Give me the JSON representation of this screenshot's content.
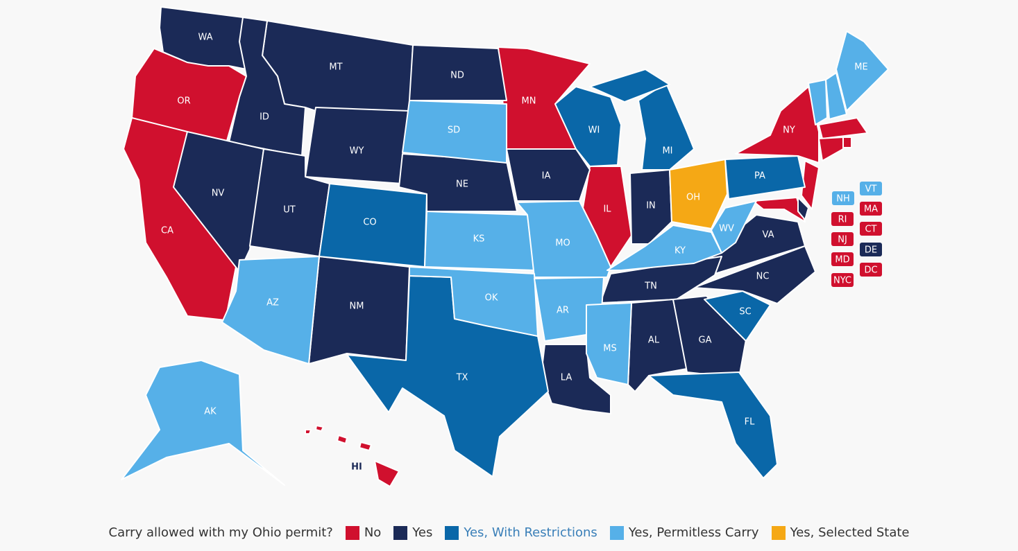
{
  "legend": {
    "title": "Carry allowed with my Ohio permit?",
    "items": [
      {
        "label": "No",
        "color": "#d0102e",
        "states": [
          "OR",
          "CA",
          "MN",
          "IL",
          "NY",
          "HI",
          "MA",
          "RI",
          "CT",
          "NJ",
          "MD",
          "DC",
          "NYC"
        ]
      },
      {
        "label": "Yes",
        "color": "#1b2a57",
        "states": [
          "WA",
          "MT",
          "ID",
          "NV",
          "UT",
          "WY",
          "ND",
          "NE",
          "IA",
          "NM",
          "IN",
          "VA",
          "NC",
          "TN",
          "AL",
          "GA",
          "LA",
          "DE"
        ]
      },
      {
        "label": "Yes, With Restrictions",
        "color": "#0a67a8",
        "states": [
          "CO",
          "WI",
          "MI",
          "PA",
          "TX",
          "SC",
          "FL"
        ]
      },
      {
        "label": "Yes, Permitless Carry",
        "color": "#56b0e8",
        "states": [
          "SD",
          "KS",
          "MO",
          "OK",
          "AR",
          "AZ",
          "MS",
          "KY",
          "WV",
          "ME",
          "NH",
          "VT",
          "AK"
        ]
      },
      {
        "label": "Yes, Selected State",
        "color": "#f5a815",
        "states": [
          "OH"
        ]
      }
    ]
  }
}
